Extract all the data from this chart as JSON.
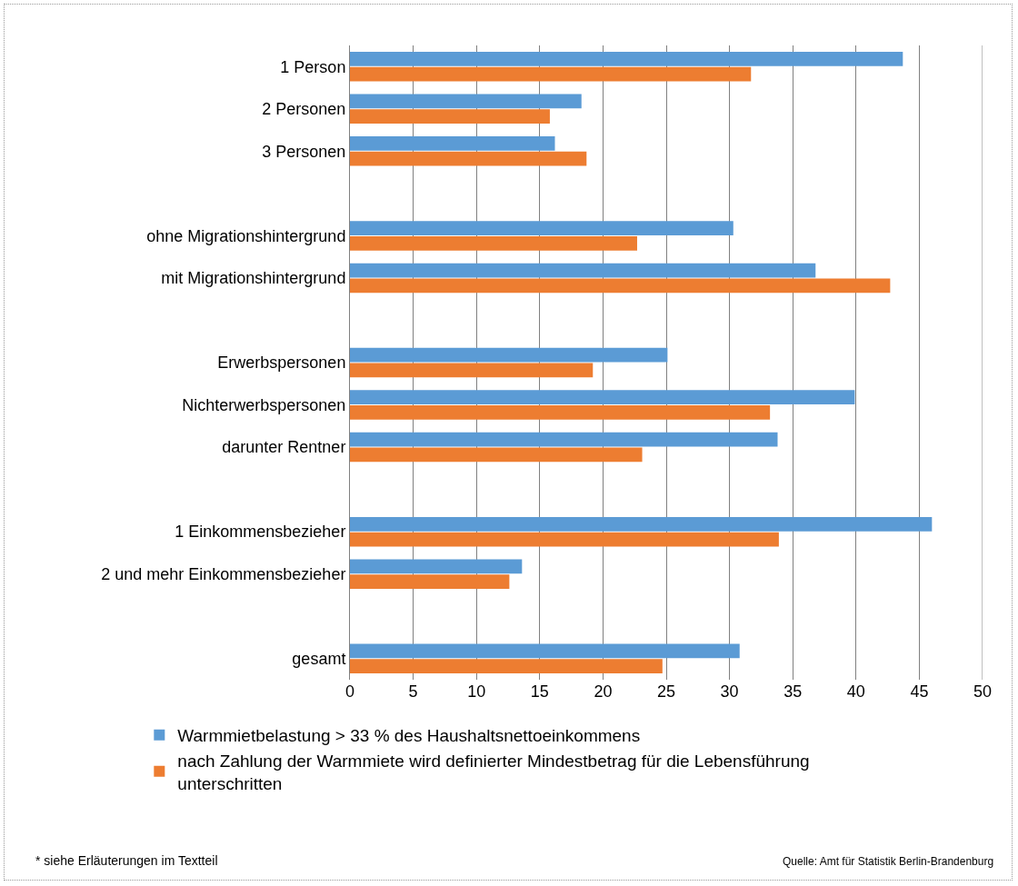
{
  "chart_data": {
    "type": "bar",
    "orientation": "horizontal",
    "categories": [
      "1 Person",
      "2 Personen",
      "3 Personen",
      null,
      "ohne Migrationshintergrund",
      "mit Migrationshintergrund",
      null,
      "Erwerbspersonen",
      "Nichterwerbspersonen",
      "darunter Rentner",
      null,
      "1 Einkommensbezieher",
      "2 und mehr Einkommensbezieher",
      null,
      "gesamt"
    ],
    "series": [
      {
        "name": "Warmmietbelastung > 33 % des Haushaltsnettoeinkommens",
        "color": "#5b9bd5",
        "values": [
          43.7,
          18.3,
          16.2,
          null,
          30.3,
          36.8,
          null,
          25.1,
          39.9,
          33.8,
          null,
          46.0,
          13.6,
          null,
          30.8
        ]
      },
      {
        "name": "nach Zahlung der Warmmiete wird definierter Mindestbetrag für die Lebensführung unterschritten",
        "color": "#ed7d31",
        "values": [
          31.7,
          15.8,
          18.7,
          null,
          22.7,
          42.7,
          null,
          19.2,
          33.2,
          23.1,
          null,
          33.9,
          12.6,
          null,
          24.7
        ]
      }
    ],
    "xlim": [
      0,
      50
    ],
    "xticks": [
      0,
      5,
      10,
      15,
      20,
      25,
      30,
      35,
      40,
      45,
      50
    ],
    "grid": "x",
    "legend": "bottom",
    "annotations": [
      "* siehe Erläuterungen im Textteil",
      "Quelle: Amt für Statistik Berlin-Brandenburg"
    ]
  }
}
